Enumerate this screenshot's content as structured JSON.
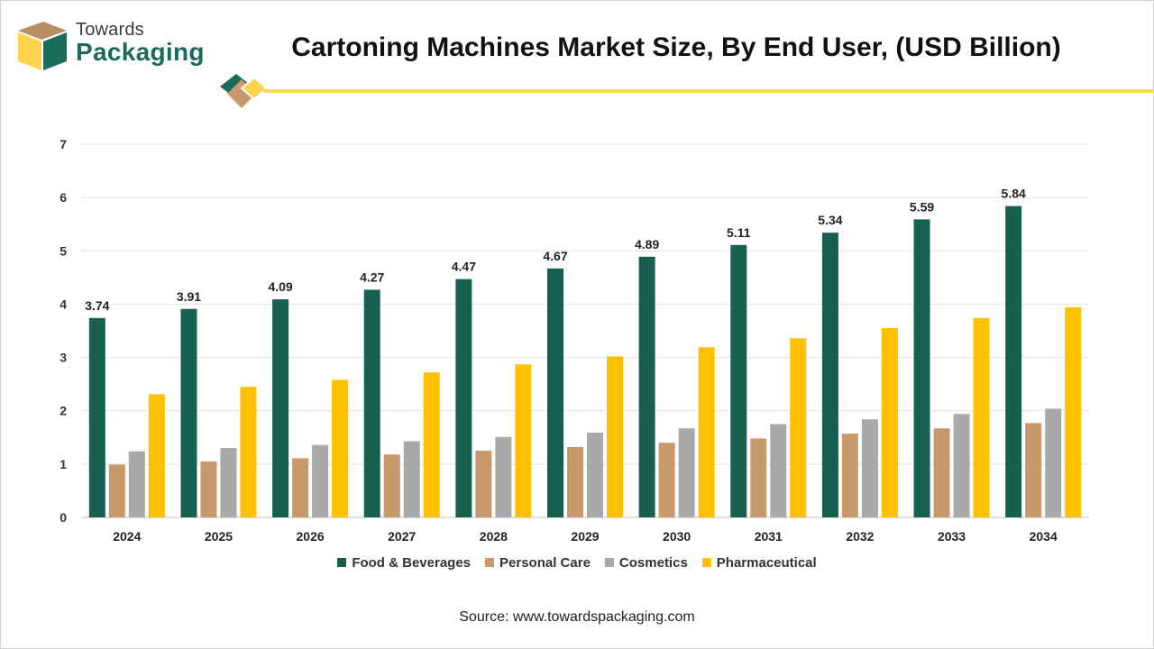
{
  "brand": {
    "line1": "Towards",
    "line2": "Packaging",
    "colors": {
      "green": "#1a6b5a",
      "tan": "#c8986a",
      "yellow": "#ffd34e",
      "accent_line": "#f4d86a"
    }
  },
  "source_text": "Source: www.towardspackaging.com",
  "chart_data": {
    "type": "bar",
    "title": "Cartoning Machines Market Size, By End User, (USD Billion)",
    "xlabel": "",
    "ylabel": "",
    "ylim": [
      0,
      7
    ],
    "yticks": [
      0,
      1,
      2,
      3,
      4,
      5,
      6,
      7
    ],
    "grid": true,
    "legend_position": "bottom",
    "categories": [
      "2024",
      "2025",
      "2026",
      "2027",
      "2028",
      "2029",
      "2030",
      "2031",
      "2032",
      "2033",
      "2034"
    ],
    "series": [
      {
        "name": "Food & Beverages",
        "color": "#17604f",
        "values": [
          3.74,
          3.91,
          4.09,
          4.27,
          4.47,
          4.67,
          4.89,
          5.11,
          5.34,
          5.59,
          5.84
        ],
        "data_labels": [
          "3.74",
          "3.91",
          "4.09",
          "4.27",
          "4.47",
          "4.67",
          "4.89",
          "5.11",
          "5.34",
          "5.59",
          "5.84"
        ]
      },
      {
        "name": "Personal Care",
        "color": "#c8996b",
        "values": [
          0.99,
          1.05,
          1.11,
          1.18,
          1.25,
          1.32,
          1.4,
          1.48,
          1.57,
          1.67,
          1.77
        ]
      },
      {
        "name": "Cosmetics",
        "color": "#a9a9a9",
        "values": [
          1.24,
          1.3,
          1.36,
          1.43,
          1.51,
          1.59,
          1.67,
          1.75,
          1.84,
          1.94,
          2.04
        ]
      },
      {
        "name": "Pharmaceutical",
        "color": "#ffc000",
        "values": [
          2.31,
          2.45,
          2.58,
          2.72,
          2.87,
          3.02,
          3.19,
          3.36,
          3.55,
          3.74,
          3.94
        ]
      }
    ]
  }
}
